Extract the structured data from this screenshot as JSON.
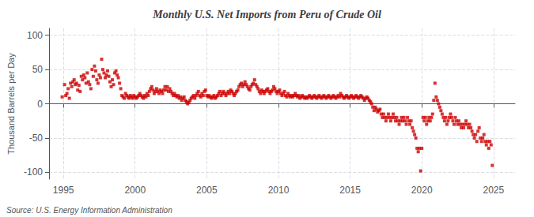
{
  "chart_data": {
    "type": "scatter",
    "title": "Monthly U.S. Net Imports from Peru of Crude Oil",
    "ylabel": "Thousand Barrels per Day",
    "annotations": [
      "Source: U.S. Energy Information Administration"
    ],
    "xlim": [
      1994.0,
      2026.5
    ],
    "ylim": [
      -110,
      110
    ],
    "xticks": [
      1995,
      2000,
      2005,
      2010,
      2015,
      2020,
      2025
    ],
    "yticks": [
      -100,
      -50,
      0,
      50,
      100
    ],
    "grid": true,
    "color": "#CC0000",
    "marker": "square",
    "x": [
      1994.917,
      1995.083,
      1995.167,
      1995.25,
      1995.333,
      1995.417,
      1995.5,
      1995.583,
      1995.667,
      1995.75,
      1995.833,
      1995.917,
      1996.0,
      1996.083,
      1996.167,
      1996.25,
      1996.333,
      1996.417,
      1996.5,
      1996.583,
      1996.667,
      1996.75,
      1996.833,
      1996.917,
      1997.0,
      1997.083,
      1997.167,
      1997.25,
      1997.333,
      1997.417,
      1997.5,
      1997.583,
      1997.667,
      1997.75,
      1997.833,
      1997.917,
      1998.0,
      1998.083,
      1998.167,
      1998.25,
      1998.333,
      1998.417,
      1998.5,
      1998.583,
      1998.667,
      1998.75,
      1998.833,
      1998.917,
      1999.0,
      1999.083,
      1999.167,
      1999.25,
      1999.333,
      1999.417,
      1999.5,
      1999.583,
      1999.667,
      1999.75,
      1999.833,
      1999.917,
      2000.0,
      2000.083,
      2000.167,
      2000.25,
      2000.333,
      2000.417,
      2000.5,
      2000.583,
      2000.667,
      2000.75,
      2000.833,
      2000.917,
      2001.0,
      2001.083,
      2001.167,
      2001.25,
      2001.333,
      2001.417,
      2001.5,
      2001.583,
      2001.667,
      2001.75,
      2001.833,
      2001.917,
      2002.0,
      2002.083,
      2002.167,
      2002.25,
      2002.333,
      2002.417,
      2002.5,
      2002.583,
      2002.667,
      2002.75,
      2002.833,
      2002.917,
      2003.0,
      2003.083,
      2003.167,
      2003.25,
      2003.333,
      2003.417,
      2003.5,
      2003.583,
      2003.667,
      2003.75,
      2003.833,
      2003.917,
      2004.0,
      2004.083,
      2004.167,
      2004.25,
      2004.333,
      2004.417,
      2004.5,
      2004.583,
      2004.667,
      2004.75,
      2004.833,
      2004.917,
      2005.0,
      2005.083,
      2005.167,
      2005.25,
      2005.333,
      2005.417,
      2005.5,
      2005.583,
      2005.667,
      2005.75,
      2005.833,
      2005.917,
      2006.0,
      2006.083,
      2006.167,
      2006.25,
      2006.333,
      2006.417,
      2006.5,
      2006.583,
      2006.667,
      2006.75,
      2006.833,
      2006.917,
      2007.0,
      2007.083,
      2007.167,
      2007.25,
      2007.333,
      2007.417,
      2007.5,
      2007.583,
      2007.667,
      2007.75,
      2007.833,
      2007.917,
      2008.0,
      2008.083,
      2008.167,
      2008.25,
      2008.333,
      2008.417,
      2008.5,
      2008.583,
      2008.667,
      2008.75,
      2008.833,
      2008.917,
      2009.0,
      2009.083,
      2009.167,
      2009.25,
      2009.333,
      2009.417,
      2009.5,
      2009.583,
      2009.667,
      2009.75,
      2009.833,
      2009.917,
      2010.0,
      2010.083,
      2010.167,
      2010.25,
      2010.333,
      2010.417,
      2010.5,
      2010.583,
      2010.667,
      2010.75,
      2010.833,
      2010.917,
      2011.0,
      2011.083,
      2011.167,
      2011.25,
      2011.333,
      2011.417,
      2011.5,
      2011.583,
      2011.667,
      2011.75,
      2011.833,
      2011.917,
      2012.0,
      2012.083,
      2012.167,
      2012.25,
      2012.333,
      2012.417,
      2012.5,
      2012.583,
      2012.667,
      2012.75,
      2012.833,
      2012.917,
      2013.0,
      2013.083,
      2013.167,
      2013.25,
      2013.333,
      2013.417,
      2013.5,
      2013.583,
      2013.667,
      2013.75,
      2013.833,
      2013.917,
      2014.0,
      2014.083,
      2014.167,
      2014.25,
      2014.333,
      2014.417,
      2014.5,
      2014.583,
      2014.667,
      2014.75,
      2014.833,
      2014.917,
      2015.0,
      2015.083,
      2015.167,
      2015.25,
      2015.333,
      2015.417,
      2015.5,
      2015.583,
      2015.667,
      2015.75,
      2015.833,
      2015.917,
      2016.0,
      2016.083,
      2016.167,
      2016.25,
      2016.333,
      2016.417,
      2016.5,
      2016.583,
      2016.667,
      2016.75,
      2016.833,
      2016.917,
      2017.0,
      2017.083,
      2017.167,
      2017.25,
      2017.333,
      2017.417,
      2017.5,
      2017.583,
      2017.667,
      2017.75,
      2017.833,
      2017.917,
      2018.0,
      2018.083,
      2018.167,
      2018.25,
      2018.333,
      2018.417,
      2018.5,
      2018.583,
      2018.667,
      2018.75,
      2018.833,
      2018.917,
      2019.0,
      2019.083,
      2019.167,
      2019.25,
      2019.333,
      2019.417,
      2019.5,
      2019.583,
      2019.667,
      2019.75,
      2019.833,
      2019.917,
      2020.0,
      2020.083,
      2020.167,
      2020.25,
      2020.333,
      2020.417,
      2020.5,
      2020.583,
      2020.667,
      2020.75,
      2020.833,
      2020.917,
      2021.0,
      2021.083,
      2021.167,
      2021.25,
      2021.333,
      2021.417,
      2021.5,
      2021.583,
      2021.667,
      2021.75,
      2021.833,
      2021.917,
      2022.0,
      2022.083,
      2022.167,
      2022.25,
      2022.333,
      2022.417,
      2022.5,
      2022.583,
      2022.667,
      2022.75,
      2022.833,
      2022.917,
      2023.0,
      2023.083,
      2023.167,
      2023.25,
      2023.333,
      2023.417,
      2023.5,
      2023.583,
      2023.667,
      2023.75,
      2023.833,
      2023.917,
      2024.0,
      2024.083,
      2024.167,
      2024.25,
      2024.333,
      2024.417,
      2024.5,
      2024.583,
      2024.667,
      2024.75,
      2024.833,
      2024.917
    ],
    "values": [
      10,
      28,
      12,
      15,
      22,
      8,
      30,
      25,
      32,
      35,
      28,
      30,
      20,
      27,
      18,
      40,
      35,
      42,
      38,
      30,
      45,
      32,
      28,
      22,
      50,
      40,
      55,
      48,
      35,
      30,
      42,
      38,
      65,
      50,
      45,
      38,
      42,
      48,
      40,
      32,
      25,
      35,
      28,
      45,
      48,
      42,
      38,
      30,
      22,
      12,
      10,
      8,
      15,
      12,
      10,
      8,
      12,
      10,
      8,
      12,
      10,
      8,
      10,
      12,
      15,
      12,
      10,
      8,
      12,
      10,
      15,
      12,
      18,
      22,
      25,
      20,
      15,
      18,
      22,
      18,
      15,
      20,
      18,
      15,
      20,
      25,
      20,
      25,
      18,
      22,
      18,
      15,
      12,
      15,
      12,
      10,
      12,
      8,
      10,
      5,
      8,
      10,
      5,
      3,
      0,
      2,
      5,
      8,
      10,
      12,
      8,
      12,
      15,
      18,
      12,
      10,
      15,
      12,
      18,
      20,
      12,
      10,
      12,
      10,
      8,
      10,
      12,
      8,
      10,
      12,
      15,
      18,
      12,
      15,
      18,
      15,
      12,
      15,
      18,
      15,
      20,
      18,
      15,
      12,
      15,
      18,
      20,
      25,
      28,
      30,
      25,
      28,
      32,
      28,
      25,
      22,
      20,
      25,
      28,
      30,
      35,
      28,
      25,
      22,
      18,
      15,
      20,
      18,
      15,
      18,
      20,
      22,
      18,
      15,
      18,
      20,
      25,
      22,
      18,
      15,
      18,
      20,
      15,
      12,
      15,
      18,
      12,
      10,
      15,
      12,
      10,
      12,
      10,
      12,
      15,
      12,
      10,
      12,
      8,
      10,
      12,
      10,
      8,
      10,
      8,
      10,
      12,
      10,
      8,
      10,
      12,
      10,
      8,
      10,
      12,
      10,
      8,
      10,
      12,
      10,
      8,
      10,
      12,
      10,
      8,
      10,
      12,
      10,
      8,
      10,
      12,
      10,
      15,
      12,
      10,
      8,
      10,
      12,
      10,
      8,
      10,
      12,
      10,
      8,
      10,
      12,
      10,
      8,
      10,
      12,
      10,
      8,
      5,
      8,
      10,
      8,
      5,
      3,
      0,
      -5,
      -10,
      -5,
      -8,
      -12,
      -10,
      -8,
      -15,
      -20,
      -15,
      -20,
      -25,
      -20,
      -15,
      -20,
      -25,
      -20,
      -15,
      -20,
      -25,
      -20,
      -25,
      -30,
      -25,
      -20,
      -25,
      -20,
      -25,
      -30,
      -20,
      -25,
      -30,
      -25,
      -35,
      -40,
      -45,
      -50,
      -65,
      -70,
      -65,
      -98,
      -65,
      -20,
      -25,
      -20,
      -30,
      -25,
      -20,
      -25,
      -20,
      -15,
      5,
      30,
      10,
      5,
      0,
      -5,
      -10,
      -15,
      -20,
      -25,
      -20,
      -30,
      -25,
      -20,
      -15,
      -20,
      -25,
      -30,
      -20,
      -25,
      -30,
      -25,
      -30,
      -35,
      -30,
      -35,
      -30,
      -25,
      -30,
      -35,
      -30,
      -35,
      -40,
      -45,
      -50,
      -45,
      -55,
      -40,
      -35,
      -50,
      -55,
      -50,
      -45,
      -55,
      -60,
      -55,
      -65,
      -55,
      -60,
      -90
    ]
  }
}
